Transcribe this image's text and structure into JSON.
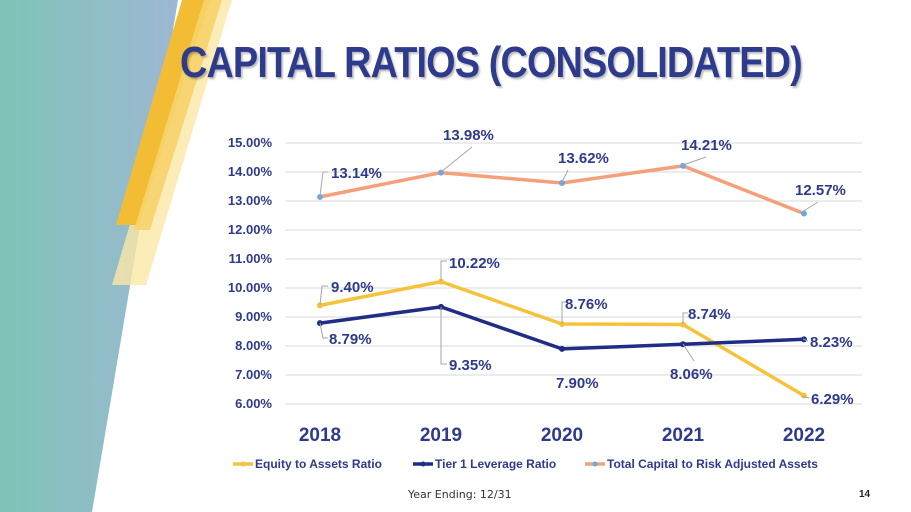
{
  "slide": {
    "title": "CAPITAL RATIOS (CONSOLIDATED)",
    "footer_note": "Year Ending: 12/31",
    "page_number": "14"
  },
  "colors": {
    "title": "#2e3a8c",
    "axis_text": "#2e3a8c",
    "gridline": "#d9d9d9",
    "leader": "#a6a6a6"
  },
  "chart_data": {
    "type": "line",
    "title": "",
    "xlabel": "",
    "ylabel": "",
    "categories": [
      "2018",
      "2019",
      "2020",
      "2021",
      "2022"
    ],
    "y_ticks": [
      "6.00%",
      "7.00%",
      "8.00%",
      "9.00%",
      "10.00%",
      "11.00%",
      "12.00%",
      "13.00%",
      "14.00%",
      "15.00%"
    ],
    "ylim": [
      6,
      15
    ],
    "grid": true,
    "legend_position": "bottom",
    "series": [
      {
        "name": "Equity to Assets Ratio",
        "color": "#f5c33b",
        "values": [
          9.4,
          10.22,
          8.76,
          8.74,
          6.29
        ],
        "labels": [
          "9.40%",
          "10.22%",
          "8.76%",
          "8.74%",
          "6.29%"
        ]
      },
      {
        "name": "Tier 1 Leverage Ratio",
        "color": "#1f2d86",
        "values": [
          8.79,
          9.35,
          7.9,
          8.06,
          8.23
        ],
        "labels": [
          "8.79%",
          "9.35%",
          "7.90%",
          "8.06%",
          "8.23%"
        ]
      },
      {
        "name": "Total Capital to Risk Adjusted Assets",
        "color": "#f4a07a",
        "marker_color": "#6fa8dc",
        "values": [
          13.14,
          13.98,
          13.62,
          14.21,
          12.57
        ],
        "labels": [
          "13.14%",
          "13.98%",
          "13.62%",
          "14.21%",
          "12.57%"
        ]
      }
    ]
  }
}
